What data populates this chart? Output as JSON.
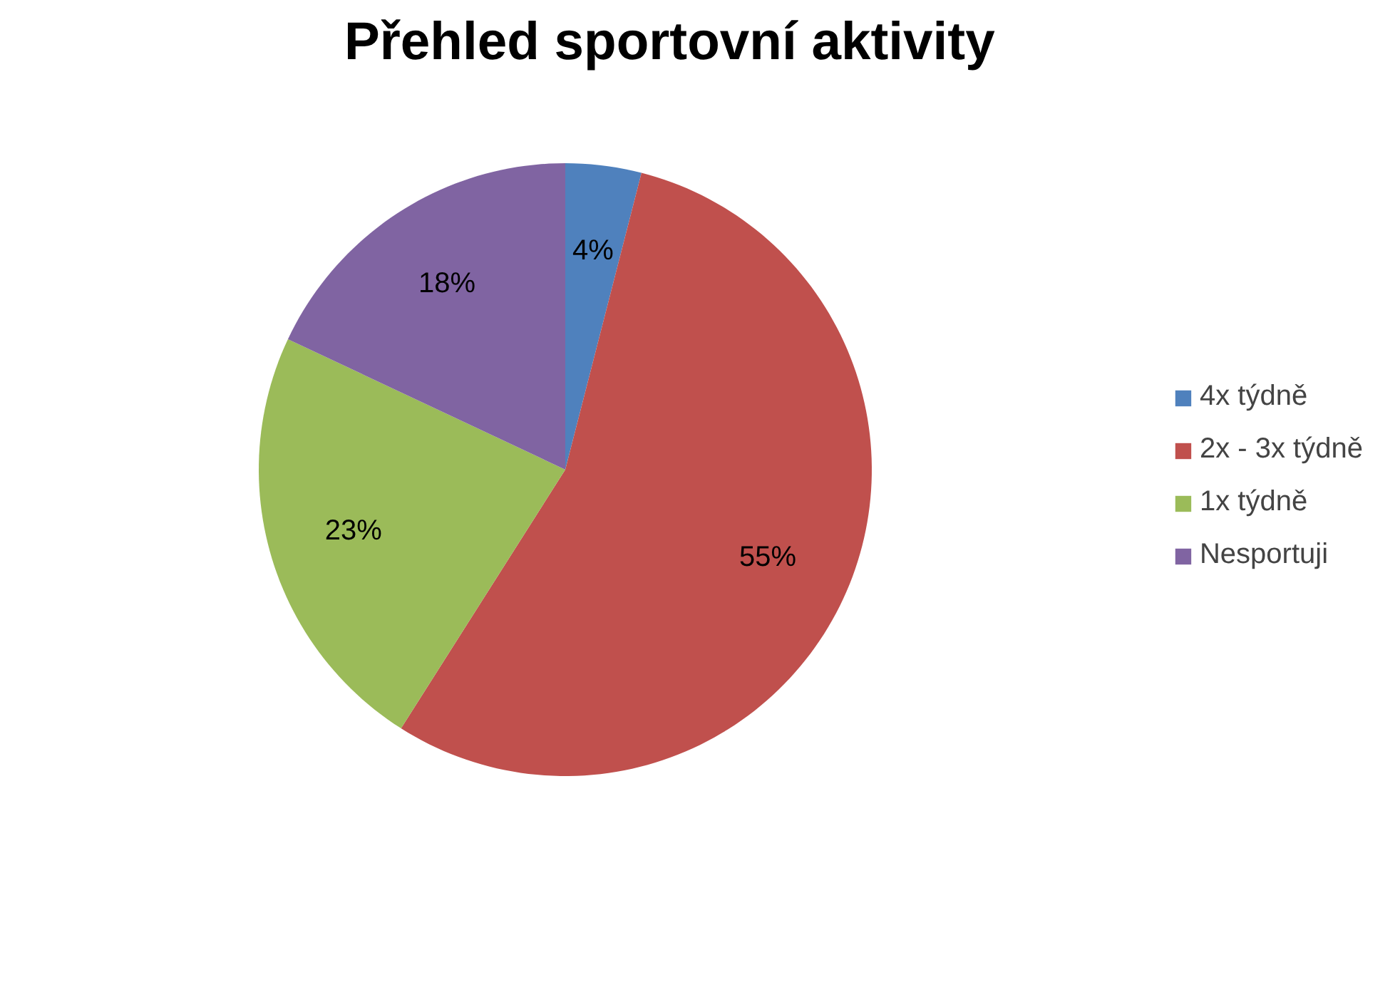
{
  "chart_data": {
    "type": "pie",
    "title": "Přehled sportovní aktivity",
    "categories": [
      "4x týdně",
      "2x - 3x týdně",
      "1x týdně",
      "Nesportuji"
    ],
    "values": [
      4,
      55,
      23,
      18
    ],
    "colors": [
      "#4f81bd",
      "#c0504d",
      "#9bbb59",
      "#8064a2"
    ],
    "value_labels": [
      "4%",
      "55%",
      "23%",
      "18%"
    ],
    "legend": "right"
  }
}
